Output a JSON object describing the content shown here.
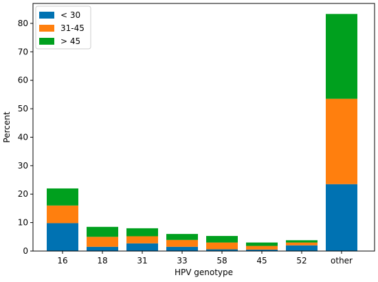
{
  "chart_data": {
    "type": "bar",
    "stacked": true,
    "categories": [
      "16",
      "18",
      "31",
      "33",
      "58",
      "45",
      "52",
      "other"
    ],
    "series": [
      {
        "name": "< 30",
        "color": "#0072b2",
        "values": [
          9.8,
          1.5,
          2.7,
          1.5,
          0.6,
          0.5,
          2.0,
          23.5
        ]
      },
      {
        "name": "31-45",
        "color": "#ff7f0e",
        "values": [
          6.2,
          3.5,
          2.5,
          2.4,
          2.4,
          1.3,
          1.0,
          30.0
        ]
      },
      {
        "name": "> 45",
        "color": "#00a01e",
        "values": [
          6.0,
          3.5,
          2.8,
          2.1,
          2.3,
          1.2,
          0.8,
          29.8
        ]
      }
    ],
    "xlabel": "HPV genotype",
    "ylabel": "Percent",
    "ylim": [
      0,
      87
    ],
    "yticks": [
      0,
      10,
      20,
      30,
      40,
      50,
      60,
      70,
      80
    ],
    "grid": false,
    "legend_position": "top-left"
  }
}
